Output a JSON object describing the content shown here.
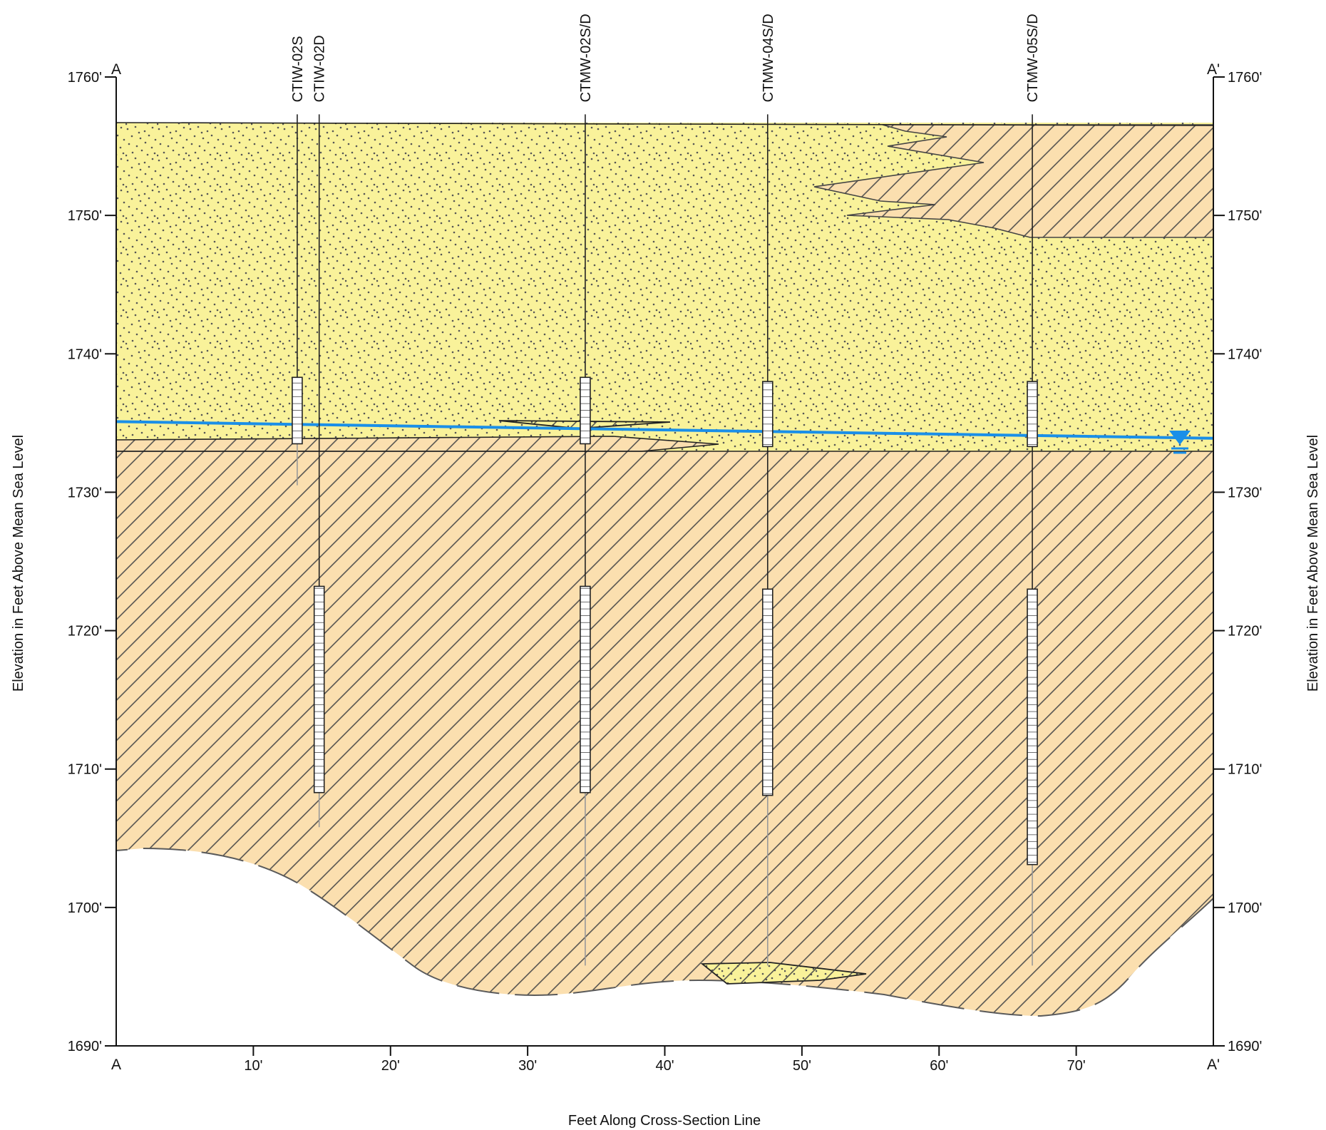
{
  "section": {
    "start_label": "A",
    "end_label": "A'"
  },
  "colors": {
    "sand": "#f9f29a",
    "clay": "#fbdfaf",
    "hatch": "#444444",
    "water_table": "#1a8fe8"
  },
  "axes": {
    "x_title": "Feet Along Cross-Section Line",
    "y_title_left": "Elevation in Feet Above Mean Sea Level",
    "y_title_right": "Elevation in Feet Above Mean Sea Level",
    "x_range_ft": [
      0,
      80
    ],
    "y_range_ft": [
      1690,
      1760
    ],
    "x_tick_labels": [
      "10'",
      "20'",
      "30'",
      "40'",
      "50'",
      "60'",
      "70'"
    ],
    "y_tick_labels": [
      "1760'",
      "1750'",
      "1740'",
      "1730'",
      "1720'",
      "1710'",
      "1700'",
      "1690'"
    ]
  },
  "wells": [
    {
      "name": "CTIW-02S",
      "x_ft": 13.2,
      "top_elev": 1757.3,
      "screen_top": 1738.3,
      "screen_bottom": 1733.5,
      "bottom_elev": 1730.5
    },
    {
      "name": "CTIW-02D",
      "x_ft": 14.8,
      "top_elev": 1757.3,
      "screen_top": 1723.2,
      "screen_bottom": 1708.3,
      "bottom_elev": 1705.8
    },
    {
      "name": "CTMW-02S/D",
      "x_ft": 34.2,
      "top_elev": 1757.3,
      "screen_top": 1723.2,
      "screen_bottom": 1708.3,
      "bottom_elev": 1695.8,
      "shallow_screen": [
        1738.3,
        1733.5
      ]
    },
    {
      "name": "CTMW-04S/D",
      "x_ft": 47.5,
      "top_elev": 1757.3,
      "screen_top": 1723.0,
      "screen_bottom": 1708.1,
      "bottom_elev": 1695.8,
      "shallow_screen": [
        1738.0,
        1733.3
      ]
    },
    {
      "name": "CTMW-05S/D",
      "x_ft": 66.8,
      "top_elev": 1757.3,
      "screen_top": 1723.0,
      "screen_bottom": 1703.1,
      "bottom_elev": 1695.8,
      "shallow_screen": [
        1738.0,
        1733.3
      ]
    }
  ],
  "water_table": {
    "elevation_start_ft": 1735.1,
    "elevation_end_ft": 1733.9
  }
}
